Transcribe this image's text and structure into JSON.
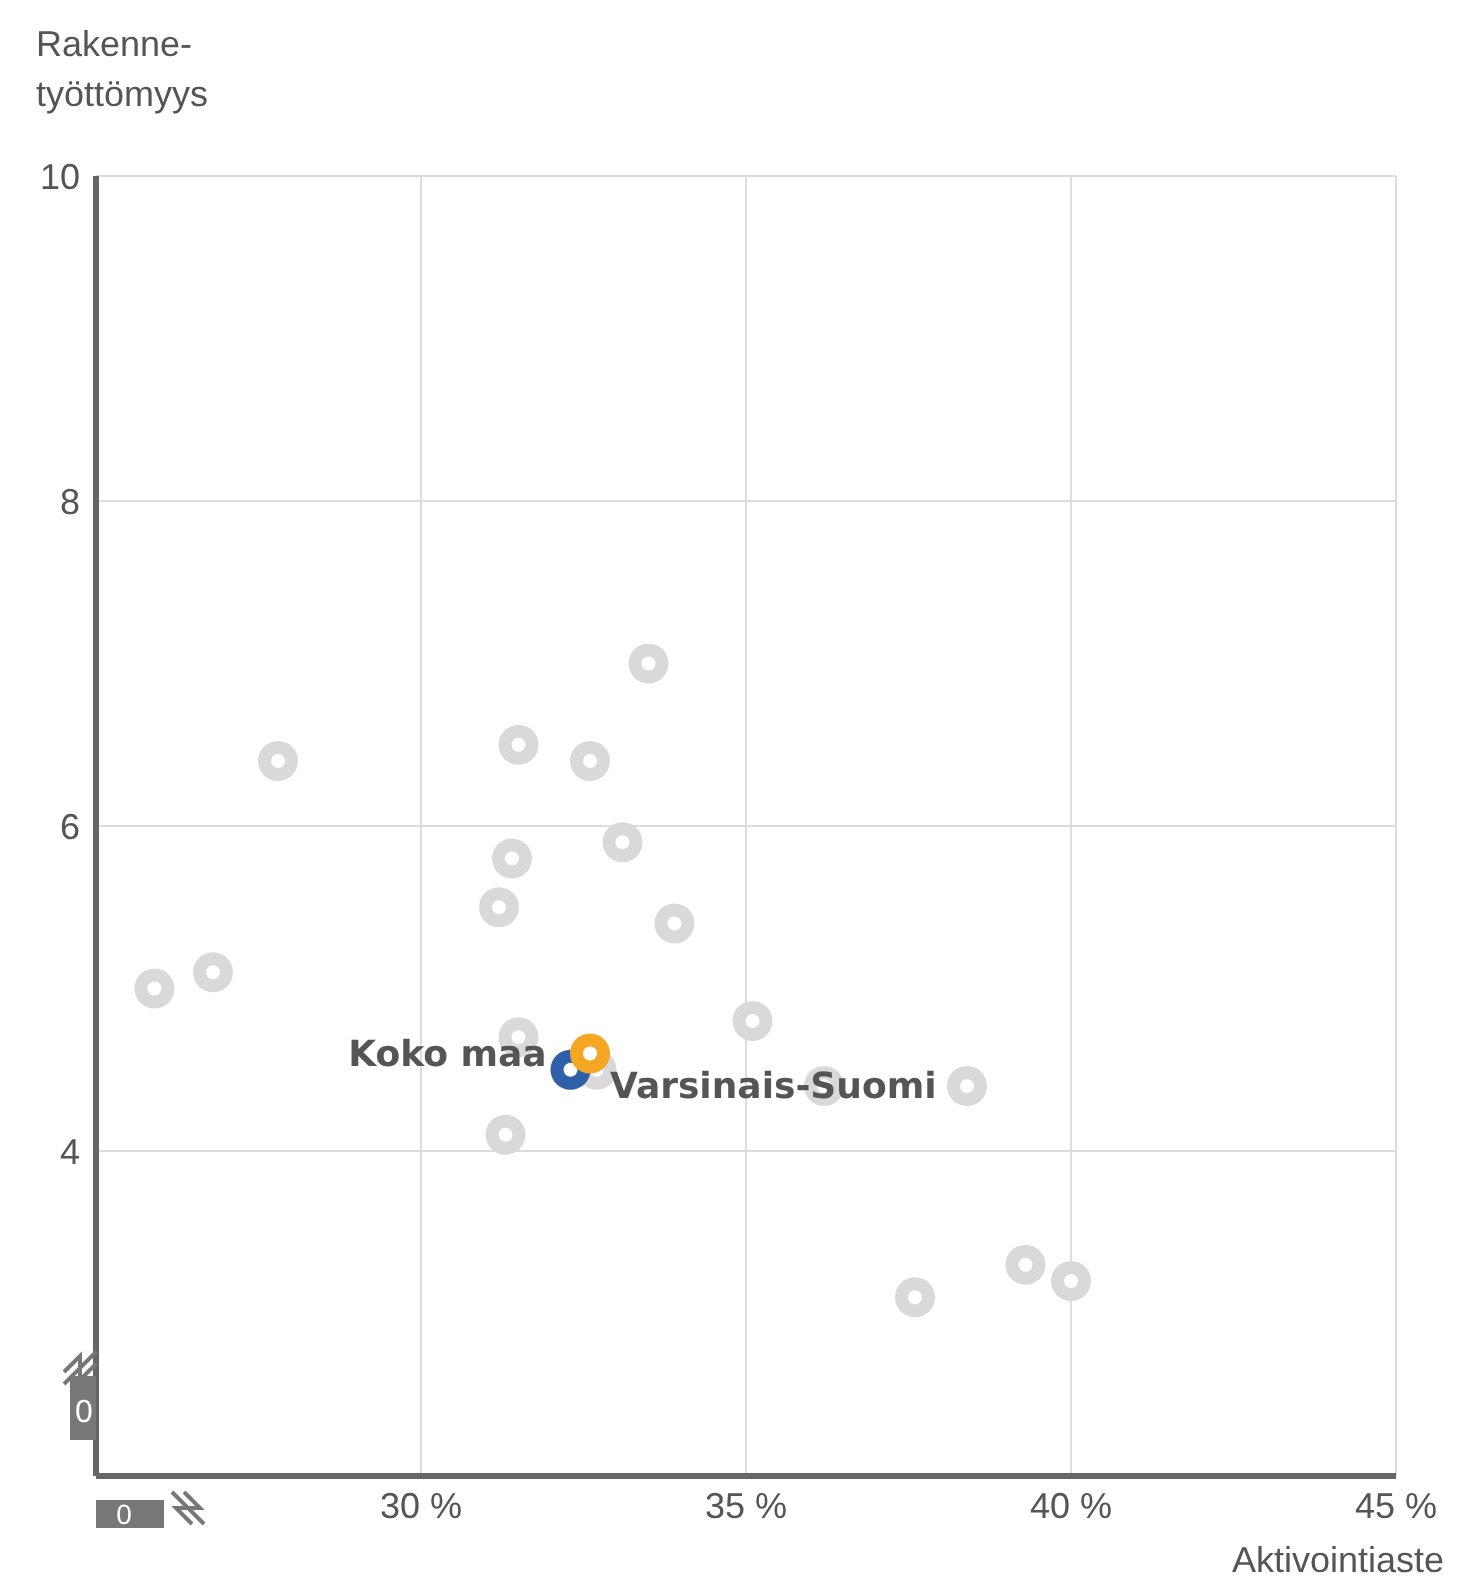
{
  "chart_data": {
    "type": "scatter",
    "xlabel": "Aktivointiaste",
    "ylabel": "Rakenne-\ntyöttömyys",
    "xlim": [
      25,
      45
    ],
    "xticks": [
      {
        "value": 30,
        "label": "30 %"
      },
      {
        "value": 35,
        "label": "35 %"
      },
      {
        "value": 40,
        "label": "40 %"
      },
      {
        "value": 45,
        "label": "45 %"
      }
    ],
    "ylim": [
      2,
      10
    ],
    "yticks": [
      4,
      6,
      8,
      10
    ],
    "grid": true,
    "legend": false,
    "marker": "circle",
    "annotations": [
      "0",
      "0"
    ],
    "series": [
      {
        "color": "#d9d9d9",
        "x": [
          25.9,
          26.8,
          27.8,
          31.5,
          32.6,
          33.5,
          31.4,
          33.1,
          31.2,
          33.9,
          31.5,
          35.1,
          32.7,
          36.2,
          38.4,
          31.3,
          37.6,
          39.3,
          40.0
        ],
        "values": [
          5.0,
          5.1,
          6.4,
          6.5,
          6.4,
          7.0,
          5.8,
          5.9,
          5.5,
          5.4,
          4.7,
          4.8,
          4.5,
          4.4,
          4.4,
          4.1,
          3.1,
          3.3,
          3.2
        ]
      },
      {
        "name": "Koko maa",
        "color": "#2f5fa8",
        "x": [
          32.3
        ],
        "values": [
          4.5
        ]
      },
      {
        "name": "Varsinais-Suomi",
        "color": "#f5a623",
        "x": [
          32.6
        ],
        "values": [
          4.6
        ]
      }
    ]
  }
}
